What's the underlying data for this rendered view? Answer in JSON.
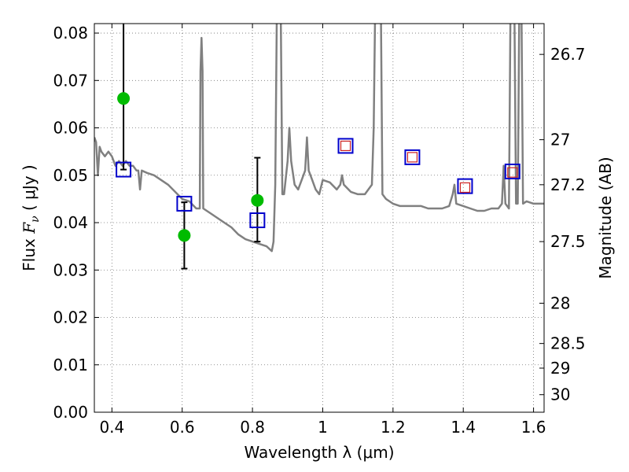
{
  "chart_data": {
    "type": "line",
    "xlabel": "Wavelength  λ (μm)",
    "ylabel": "Flux  F_ν  ( μJy )",
    "ylabel_parts": {
      "prefix": "Flux  ",
      "symbol": "F",
      "subscript": "ν",
      "suffix": "  ( μJy )"
    },
    "y2label": "Magnitude (AB)",
    "xlim": [
      0.35,
      1.63
    ],
    "ylim": [
      0.0,
      0.082
    ],
    "grid": true,
    "x_ticks": [
      {
        "value": 0.4,
        "label": "0.4"
      },
      {
        "value": 0.6,
        "label": "0.6"
      },
      {
        "value": 0.8,
        "label": "0.8"
      },
      {
        "value": 1.0,
        "label": "1"
      },
      {
        "value": 1.2,
        "label": "1.2"
      },
      {
        "value": 1.4,
        "label": "1.4"
      },
      {
        "value": 1.6,
        "label": "1.6"
      }
    ],
    "y_ticks": [
      {
        "value": 0.0,
        "label": "0.00"
      },
      {
        "value": 0.01,
        "label": "0.01"
      },
      {
        "value": 0.02,
        "label": "0.02"
      },
      {
        "value": 0.03,
        "label": "0.03"
      },
      {
        "value": 0.04,
        "label": "0.04"
      },
      {
        "value": 0.05,
        "label": "0.05"
      },
      {
        "value": 0.06,
        "label": "0.06"
      },
      {
        "value": 0.07,
        "label": "0.07"
      },
      {
        "value": 0.08,
        "label": "0.08"
      }
    ],
    "y2_ticks": [
      {
        "flux": 0.0755,
        "label": "26.7"
      },
      {
        "flux": 0.0575,
        "label": "27"
      },
      {
        "flux": 0.048,
        "label": "27.2"
      },
      {
        "flux": 0.036,
        "label": "27.5"
      },
      {
        "flux": 0.023,
        "label": "28"
      },
      {
        "flux": 0.0145,
        "label": "28.5"
      },
      {
        "flux": 0.0093,
        "label": "29"
      },
      {
        "flux": 0.0037,
        "label": "30"
      }
    ],
    "model_spectrum": {
      "color": "#808080",
      "points": [
        [
          0.35,
          0.058
        ],
        [
          0.355,
          0.057
        ],
        [
          0.36,
          0.05
        ],
        [
          0.365,
          0.056
        ],
        [
          0.37,
          0.055
        ],
        [
          0.38,
          0.054
        ],
        [
          0.39,
          0.055
        ],
        [
          0.4,
          0.054
        ],
        [
          0.41,
          0.052
        ],
        [
          0.42,
          0.053
        ],
        [
          0.43,
          0.052
        ],
        [
          0.44,
          0.053
        ],
        [
          0.45,
          0.052
        ],
        [
          0.46,
          0.052
        ],
        [
          0.47,
          0.051
        ],
        [
          0.475,
          0.051
        ],
        [
          0.48,
          0.047
        ],
        [
          0.485,
          0.051
        ],
        [
          0.5,
          0.0505
        ],
        [
          0.52,
          0.05
        ],
        [
          0.54,
          0.049
        ],
        [
          0.56,
          0.048
        ],
        [
          0.58,
          0.0465
        ],
        [
          0.6,
          0.045
        ],
        [
          0.62,
          0.0445
        ],
        [
          0.64,
          0.043
        ],
        [
          0.65,
          0.043
        ],
        [
          0.652,
          0.072
        ],
        [
          0.655,
          0.079
        ],
        [
          0.658,
          0.072
        ],
        [
          0.66,
          0.043
        ],
        [
          0.68,
          0.042
        ],
        [
          0.7,
          0.041
        ],
        [
          0.72,
          0.04
        ],
        [
          0.74,
          0.039
        ],
        [
          0.76,
          0.0375
        ],
        [
          0.78,
          0.0365
        ],
        [
          0.8,
          0.036
        ],
        [
          0.82,
          0.0355
        ],
        [
          0.84,
          0.035
        ],
        [
          0.855,
          0.034
        ],
        [
          0.86,
          0.036
        ],
        [
          0.865,
          0.048
        ],
        [
          0.87,
          0.09
        ],
        [
          0.88,
          0.09
        ],
        [
          0.885,
          0.046
        ],
        [
          0.89,
          0.046
        ],
        [
          0.9,
          0.053
        ],
        [
          0.905,
          0.06
        ],
        [
          0.91,
          0.053
        ],
        [
          0.92,
          0.048
        ],
        [
          0.93,
          0.047
        ],
        [
          0.94,
          0.049
        ],
        [
          0.95,
          0.051
        ],
        [
          0.955,
          0.058
        ],
        [
          0.96,
          0.051
        ],
        [
          0.97,
          0.049
        ],
        [
          0.98,
          0.047
        ],
        [
          0.99,
          0.046
        ],
        [
          1.0,
          0.049
        ],
        [
          1.02,
          0.0485
        ],
        [
          1.04,
          0.047
        ],
        [
          1.05,
          0.048
        ],
        [
          1.055,
          0.05
        ],
        [
          1.06,
          0.048
        ],
        [
          1.08,
          0.0465
        ],
        [
          1.1,
          0.046
        ],
        [
          1.12,
          0.046
        ],
        [
          1.14,
          0.048
        ],
        [
          1.145,
          0.06
        ],
        [
          1.15,
          0.09
        ],
        [
          1.165,
          0.09
        ],
        [
          1.17,
          0.046
        ],
        [
          1.18,
          0.045
        ],
        [
          1.2,
          0.044
        ],
        [
          1.22,
          0.0435
        ],
        [
          1.24,
          0.0435
        ],
        [
          1.26,
          0.0435
        ],
        [
          1.28,
          0.0435
        ],
        [
          1.3,
          0.043
        ],
        [
          1.32,
          0.043
        ],
        [
          1.34,
          0.043
        ],
        [
          1.36,
          0.0435
        ],
        [
          1.37,
          0.046
        ],
        [
          1.375,
          0.048
        ],
        [
          1.38,
          0.044
        ],
        [
          1.4,
          0.0435
        ],
        [
          1.42,
          0.043
        ],
        [
          1.44,
          0.0425
        ],
        [
          1.46,
          0.0425
        ],
        [
          1.48,
          0.043
        ],
        [
          1.5,
          0.043
        ],
        [
          1.51,
          0.044
        ],
        [
          1.515,
          0.052
        ],
        [
          1.52,
          0.044
        ],
        [
          1.53,
          0.043
        ],
        [
          1.535,
          0.09
        ],
        [
          1.545,
          0.09
        ],
        [
          1.55,
          0.044
        ],
        [
          1.555,
          0.044
        ],
        [
          1.56,
          0.09
        ],
        [
          1.565,
          0.09
        ],
        [
          1.57,
          0.044
        ],
        [
          1.58,
          0.0445
        ],
        [
          1.6,
          0.044
        ],
        [
          1.62,
          0.044
        ],
        [
          1.63,
          0.044
        ]
      ]
    },
    "observed_points": {
      "color": "#00bb00",
      "points": [
        {
          "x": 0.433,
          "y": 0.0662,
          "yerr_low": 0.015,
          "yerr_high": 0.016
        },
        {
          "x": 0.606,
          "y": 0.0373,
          "yerr_low": 0.007,
          "yerr_high": 0.007
        },
        {
          "x": 0.814,
          "y": 0.0447,
          "yerr_low": 0.0087,
          "yerr_high": 0.009
        }
      ]
    },
    "model_photometry": {
      "color": "#0000cc",
      "points": [
        [
          0.433,
          0.0512
        ],
        [
          0.606,
          0.044
        ],
        [
          0.814,
          0.0405
        ],
        [
          1.065,
          0.0562
        ],
        [
          1.255,
          0.0538
        ],
        [
          1.405,
          0.0477
        ],
        [
          1.54,
          0.0508
        ]
      ]
    },
    "observed_photometry_nir": {
      "color": "#cc2222",
      "points": [
        [
          1.065,
          0.0562
        ],
        [
          1.255,
          0.0538
        ],
        [
          1.405,
          0.0474
        ],
        [
          1.54,
          0.0506
        ]
      ]
    }
  }
}
